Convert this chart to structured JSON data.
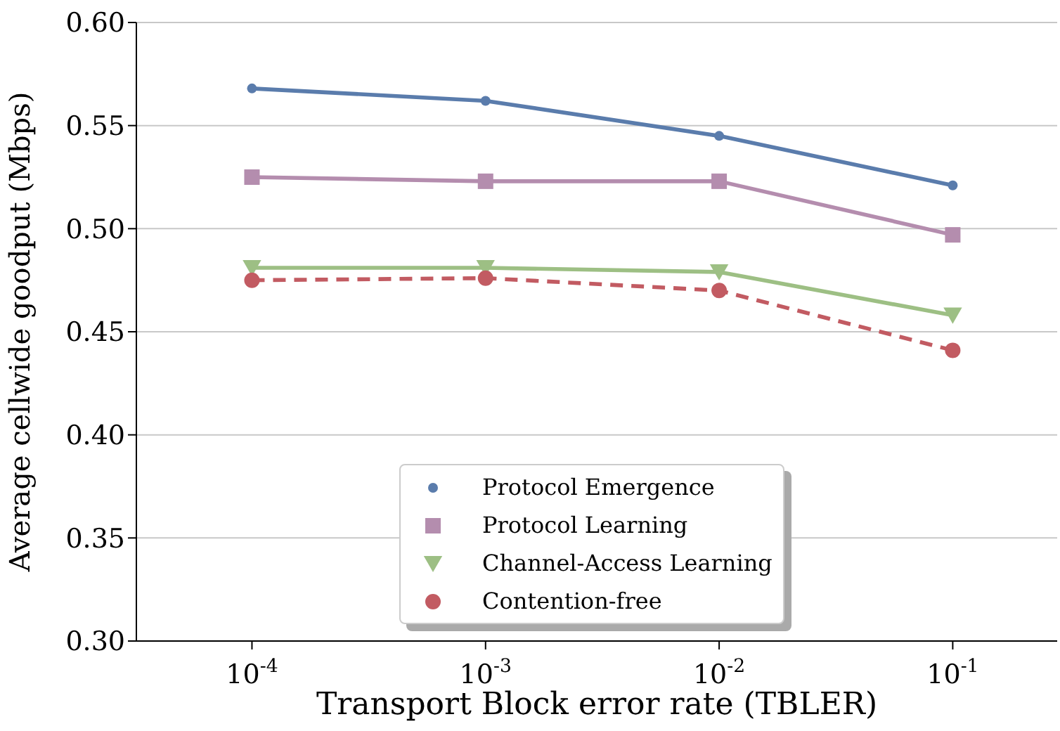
{
  "chart_data": {
    "type": "line",
    "xlabel": "Transport Block error rate (TBLER)",
    "ylabel": "Average cellwide goodput (Mbps)",
    "x": [
      0.0001,
      0.001,
      0.01,
      0.1
    ],
    "series": [
      {
        "name": "Protocol Emergence",
        "color": "#5a7cac",
        "values": [
          0.568,
          0.562,
          0.545,
          0.521
        ],
        "marker": "circle",
        "line_style": "solid"
      },
      {
        "name": "Protocol Learning",
        "color": "#b48dae",
        "values": [
          0.525,
          0.523,
          0.523,
          0.497
        ],
        "marker": "square",
        "line_style": "solid"
      },
      {
        "name": "Channel-Access Learning",
        "color": "#9dbf84",
        "values": [
          0.481,
          0.481,
          0.479,
          0.458
        ],
        "marker": "triangle",
        "line_style": "solid"
      },
      {
        "name": "Contention-free",
        "color": "#c25b62",
        "values": [
          0.475,
          0.476,
          0.47,
          0.441
        ],
        "marker": "circle",
        "line_style": "dashed"
      }
    ],
    "log": "x",
    "xlim": [
      3.2e-05,
      0.28
    ],
    "xticks": [
      {
        "value": 0.0001,
        "label": "10$^{-4}$"
      },
      {
        "value": 0.001,
        "label": "10$^{-3}$"
      },
      {
        "value": 0.01,
        "label": "10$^{-2}$"
      },
      {
        "value": 0.1,
        "label": "10$^{-1}$"
      }
    ],
    "ylim": [
      0.3,
      0.6
    ],
    "yticks": [
      {
        "value": 0.3,
        "label": "0.30"
      },
      0.35,
      {
        "value": 0.4,
        "label": "0.40"
      },
      0.45,
      {
        "value": 0.5,
        "label": "0.50"
      },
      0.55,
      {
        "value": 0.6,
        "label": "0.60"
      }
    ],
    "grid": "y",
    "legend": "bottom"
  }
}
